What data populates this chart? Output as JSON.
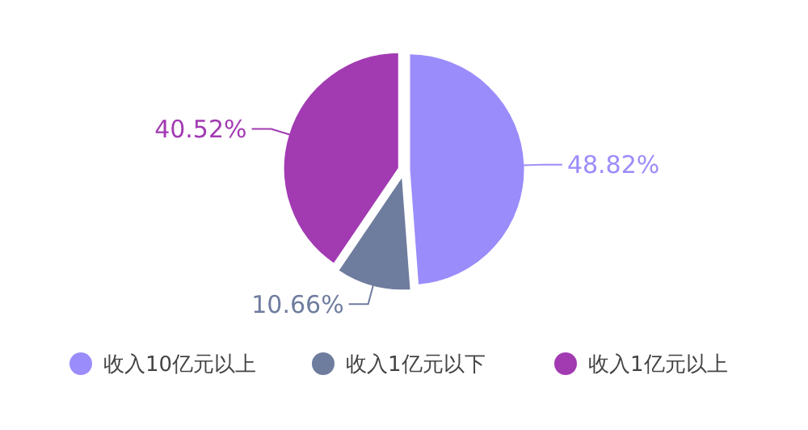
{
  "chart_data": {
    "type": "pie",
    "categories": [
      "收入10亿元以上",
      "收入1亿元以下",
      "收入1亿元以上"
    ],
    "values": [
      48.82,
      10.66,
      40.52
    ],
    "colors": [
      "#9b8cfb",
      "#6e7c9e",
      "#a23ab2"
    ],
    "value_labels": [
      "48.82%",
      "10.66%",
      "40.52%"
    ],
    "legend": "bottom"
  }
}
